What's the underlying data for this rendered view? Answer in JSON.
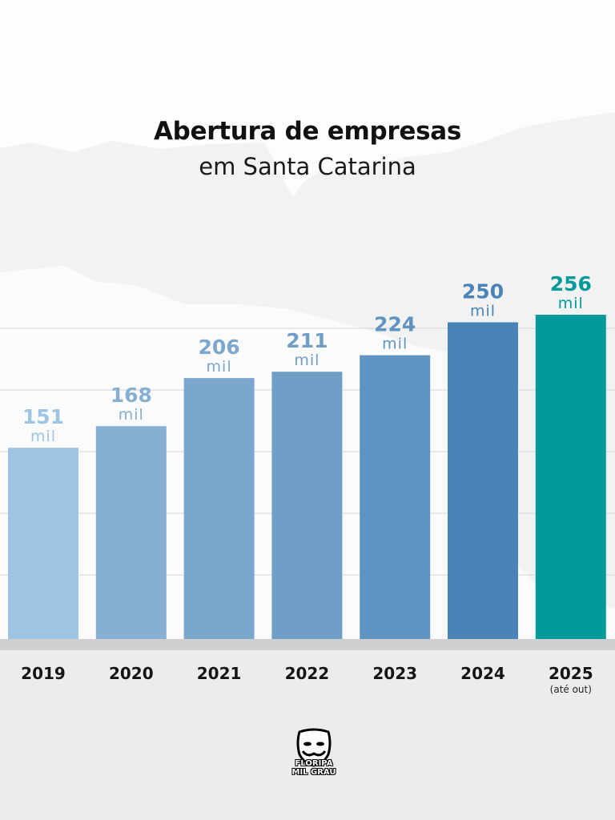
{
  "chart_data": {
    "type": "bar",
    "title": "Abertura de empresas",
    "subtitle": "em Santa Catarina",
    "categories": [
      "2019",
      "2020",
      "2021",
      "2022",
      "2023",
      "2024",
      "2025"
    ],
    "category_notes": [
      "",
      "",
      "",
      "",
      "",
      "",
      "(até out)"
    ],
    "values": [
      151,
      168,
      206,
      211,
      224,
      250,
      256
    ],
    "value_labels": [
      "151",
      "168",
      "206",
      "211",
      "224",
      "250",
      "256"
    ],
    "unit_label": "mil",
    "xlabel": "",
    "ylabel": "",
    "ylim": [
      0,
      256
    ],
    "grid": true,
    "legend": "none",
    "bar_colors": [
      "#9dc4e2",
      "#86afd2",
      "#7ba7cd",
      "#6f9ec6",
      "#5f93c1",
      "#4a83b8",
      "#009a9b"
    ],
    "label_colors": [
      "#9dc4e2",
      "#86afd2",
      "#7ba7cd",
      "#6f9ec6",
      "#5f93c1",
      "#4a83b8",
      "#009a9b"
    ]
  },
  "logo": {
    "line1": "FLORIPA",
    "line2": "MIL GRAU"
  }
}
